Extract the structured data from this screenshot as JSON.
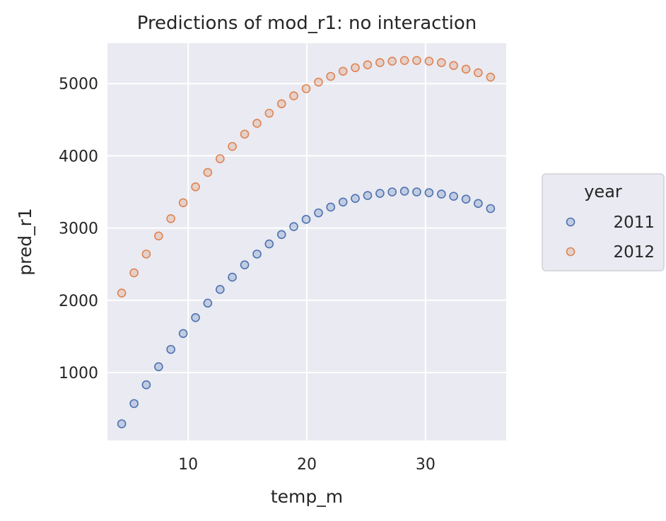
{
  "chart_data": {
    "type": "scatter",
    "title": "Predictions of mod_r1: no interaction",
    "xlabel": "temp_m",
    "ylabel": "pred_r1",
    "xlim": [
      3.2,
      36.8
    ],
    "ylim": [
      60,
      5560
    ],
    "xticks": [
      10,
      20,
      30
    ],
    "yticks": [
      1000,
      2000,
      3000,
      4000,
      5000
    ],
    "grid": true,
    "legend": {
      "title": "year",
      "placement": "right"
    },
    "x": [
      4.4,
      5.44,
      6.47,
      7.51,
      8.54,
      9.58,
      10.62,
      11.65,
      12.69,
      13.72,
      14.76,
      15.8,
      16.83,
      17.87,
      18.9,
      19.94,
      20.98,
      22.01,
      23.05,
      24.08,
      25.12,
      26.16,
      27.19,
      28.23,
      29.26,
      30.3,
      31.34,
      32.37,
      33.41,
      34.44,
      35.48
    ],
    "series": [
      {
        "name": "2011",
        "color": "#4c72b0",
        "values": [
          290,
          570,
          830,
          1080,
          1320,
          1540,
          1760,
          1960,
          2150,
          2320,
          2490,
          2640,
          2780,
          2910,
          3020,
          3120,
          3210,
          3290,
          3360,
          3410,
          3450,
          3480,
          3500,
          3510,
          3500,
          3490,
          3470,
          3440,
          3400,
          3340,
          3270
        ]
      },
      {
        "name": "2012",
        "color": "#dd8452",
        "values": [
          2100,
          2380,
          2640,
          2890,
          3130,
          3350,
          3570,
          3770,
          3960,
          4130,
          4300,
          4450,
          4590,
          4720,
          4830,
          4930,
          5020,
          5100,
          5170,
          5220,
          5260,
          5290,
          5310,
          5320,
          5320,
          5310,
          5290,
          5250,
          5200,
          5150,
          5090
        ]
      }
    ]
  }
}
